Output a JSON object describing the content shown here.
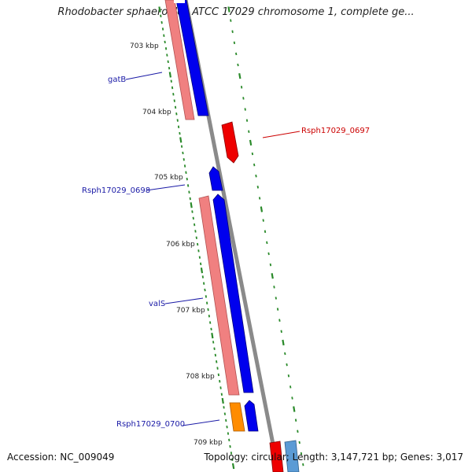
{
  "map": {
    "title": "Rhodobacter sphaeroides ATCC 17029 chromosome 1, complete ge...",
    "accession": "Accession: NC_009049",
    "summary": "Topology: circular; Length: 3,147,721 bp; Genes: 3,017"
  },
  "ruler": {
    "ticks": [
      {
        "label": "703 kbp"
      },
      {
        "label": "704 kbp"
      },
      {
        "label": "705 kbp"
      },
      {
        "label": "706 kbp"
      },
      {
        "label": "707 kbp"
      },
      {
        "label": "708 kbp"
      },
      {
        "label": "709 kbp"
      }
    ]
  },
  "features": {
    "labels": [
      {
        "text": "gatB",
        "color": "#1a1aa6"
      },
      {
        "text": "Rsph17029_0697",
        "color": "#cc0000"
      },
      {
        "text": "Rsph17029_0698",
        "color": "#1a1aa6"
      },
      {
        "text": "valS",
        "color": "#1a1aa6"
      },
      {
        "text": "Rsph17029_0700",
        "color": "#1a1aa6"
      }
    ]
  },
  "colors": {
    "forward_cds": "#0000ee",
    "forward_rna": "#f08080",
    "reverse_cds": "#ee0000",
    "orange_feature": "#ff8c00",
    "light_blue_feature": "#5b9bd5",
    "backbone": "#8a8a8a",
    "tick": "#2a8a2a"
  }
}
